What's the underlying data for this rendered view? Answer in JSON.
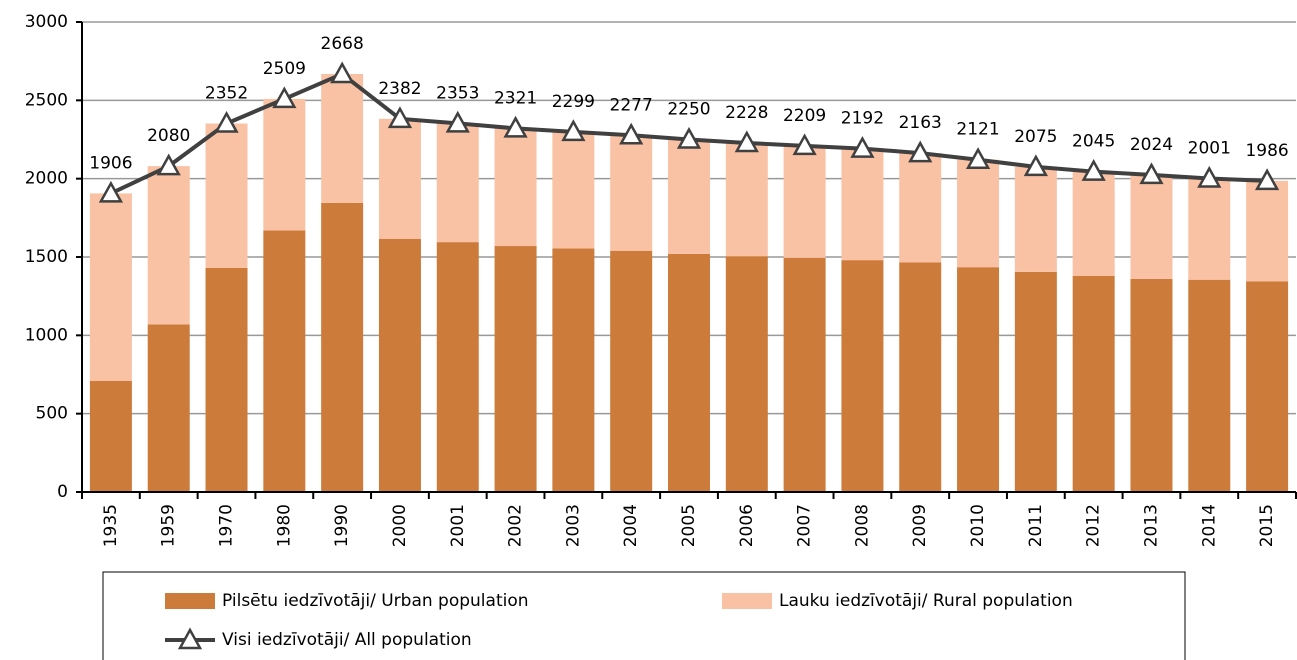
{
  "chart_data": {
    "type": "bar",
    "stacked": true,
    "categories": [
      "1935",
      "1959",
      "1970",
      "1980",
      "1990",
      "2000",
      "2001",
      "2002",
      "2003",
      "2004",
      "2005",
      "2006",
      "2007",
      "2008",
      "2009",
      "2010",
      "2011",
      "2012",
      "2013",
      "2014",
      "2015"
    ],
    "series": [
      {
        "name": "Pilsētu iedzīvotāji/ Urban population",
        "color": "#cd7b3a",
        "type": "bar",
        "values": [
          710,
          1070,
          1430,
          1670,
          1845,
          1615,
          1595,
          1570,
          1555,
          1540,
          1520,
          1505,
          1495,
          1480,
          1465,
          1435,
          1405,
          1380,
          1360,
          1355,
          1345
        ]
      },
      {
        "name": "Lauku iedzīvotāji/ Rural population",
        "color": "#f9c2a5",
        "type": "bar",
        "values": [
          1196,
          1010,
          922,
          839,
          823,
          767,
          758,
          751,
          744,
          737,
          730,
          723,
          714,
          712,
          698,
          686,
          670,
          665,
          664,
          646,
          641
        ]
      },
      {
        "name": "Visi iedzīvotāji/ All population",
        "color": "#404040",
        "type": "line",
        "values": [
          1906,
          2080,
          2352,
          2509,
          2668,
          2382,
          2353,
          2321,
          2299,
          2277,
          2250,
          2228,
          2209,
          2192,
          2163,
          2121,
          2075,
          2045,
          2024,
          2001,
          1986
        ]
      }
    ],
    "ylim": [
      0,
      3000
    ],
    "yticks": [
      0,
      500,
      1000,
      1500,
      2000,
      2500,
      3000
    ],
    "grid": true
  }
}
